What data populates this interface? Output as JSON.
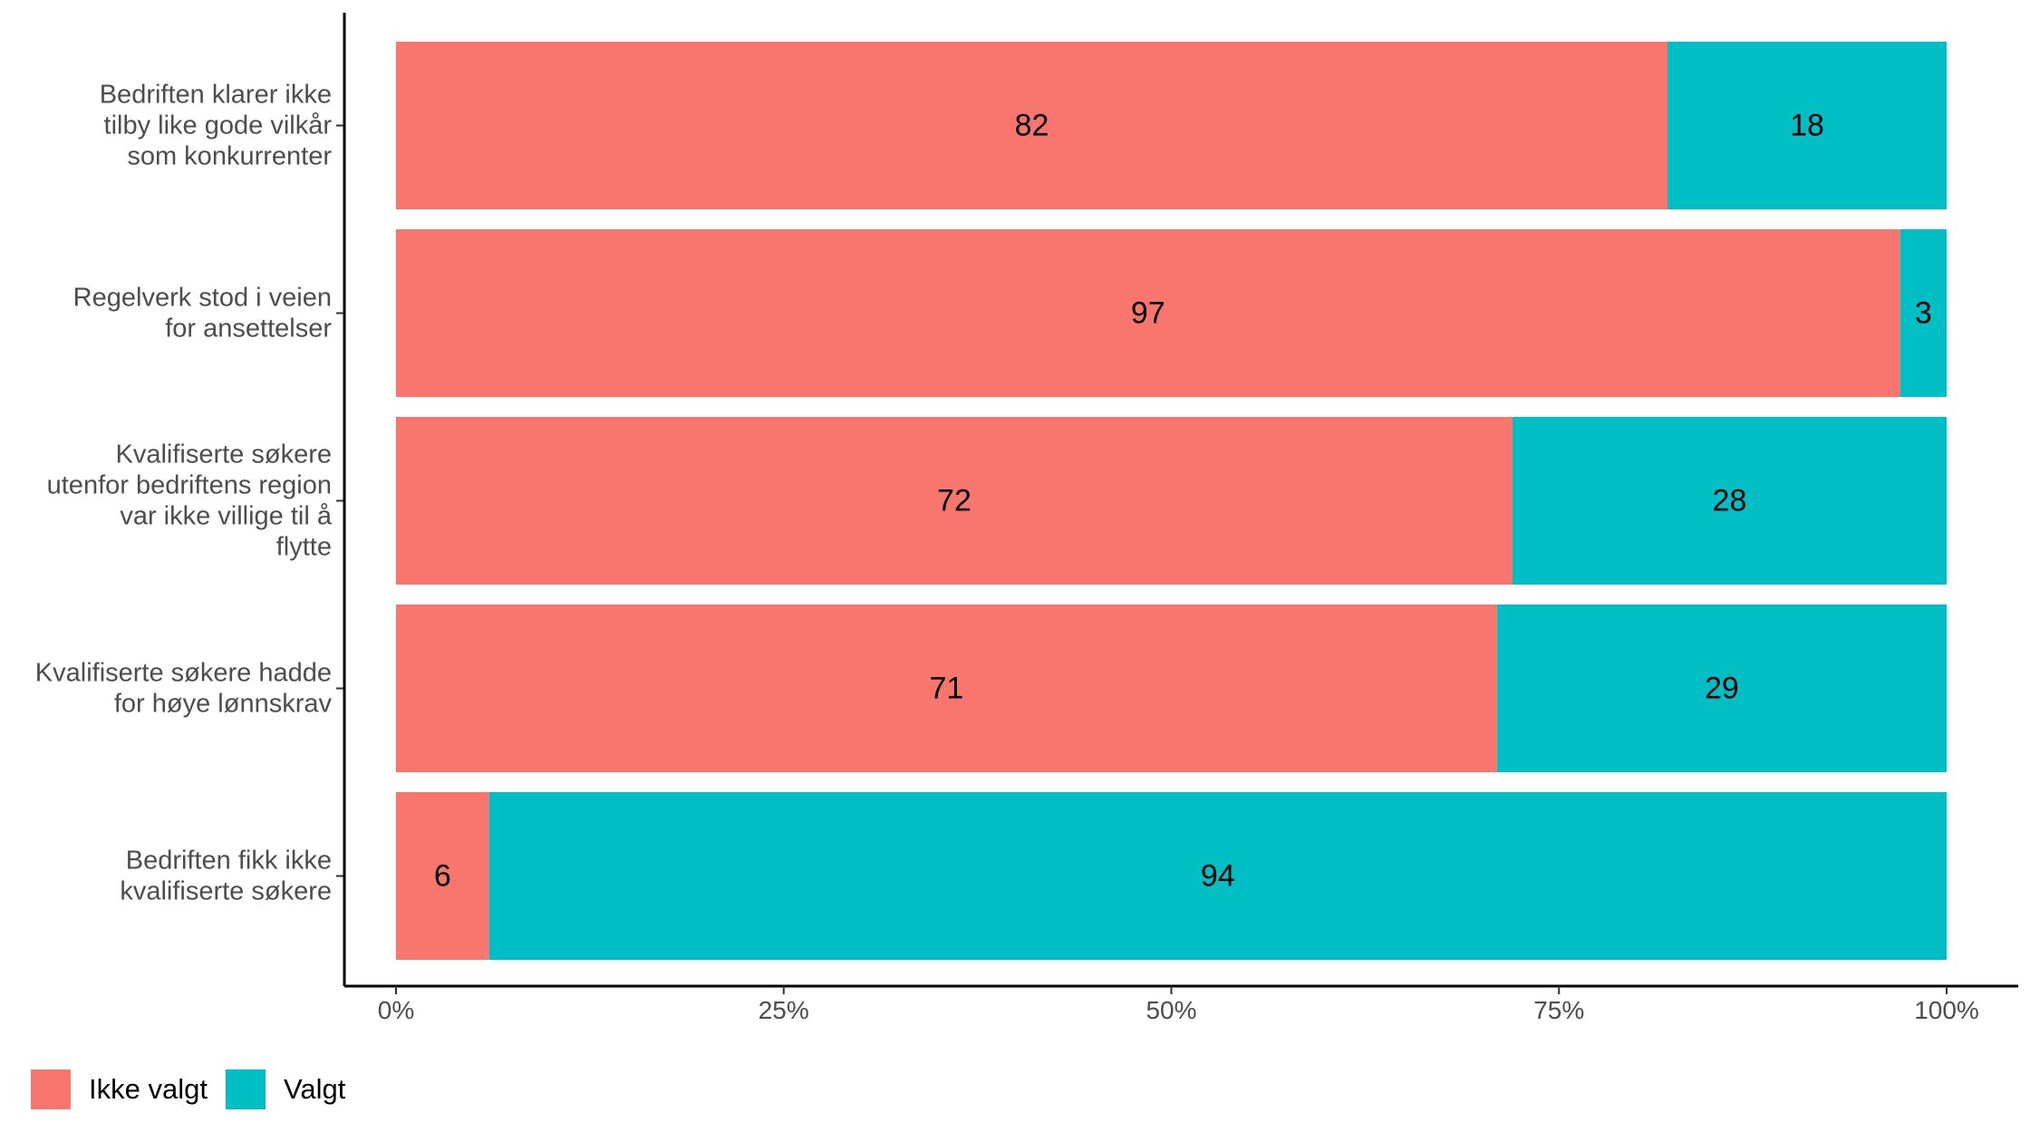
{
  "chart_data": {
    "type": "bar",
    "orientation": "horizontal",
    "stacked": true,
    "categories": [
      "Bedriften klarer ikke tilby like gode vilkår som konkurrenter",
      "Regelverk stod i veien for ansettelser",
      "Kvalifiserte søkere utenfor bedriftens region var ikke villige til å flytte",
      "Kvalifiserte søkere hadde for høye lønnskrav",
      "Bedriften fikk ikke kvalifiserte søkere"
    ],
    "category_lines": [
      [
        "Bedriften klarer ikke",
        "tilby like gode vilkår",
        "som konkurrenter"
      ],
      [
        "Regelverk stod i veien",
        "for ansettelser"
      ],
      [
        "Kvalifiserte søkere",
        "utenfor bedriftens region",
        "var ikke villige til å",
        "flytte"
      ],
      [
        "Kvalifiserte søkere hadde",
        "for høye lønnskrav"
      ],
      [
        "Bedriften fikk ikke",
        "kvalifiserte søkere"
      ]
    ],
    "series": [
      {
        "name": "Ikke valgt",
        "color": "#F8766D",
        "values": [
          82,
          97,
          72,
          71,
          6
        ]
      },
      {
        "name": "Valgt",
        "color": "#00BFC4",
        "values": [
          18,
          3,
          28,
          29,
          94
        ]
      }
    ],
    "xlim": [
      0,
      100
    ],
    "xticks": [
      0,
      25,
      50,
      75,
      100
    ],
    "xtick_labels": [
      "0%",
      "25%",
      "50%",
      "75%",
      "100%"
    ],
    "grid": false,
    "legend_position": "bottom-left"
  }
}
